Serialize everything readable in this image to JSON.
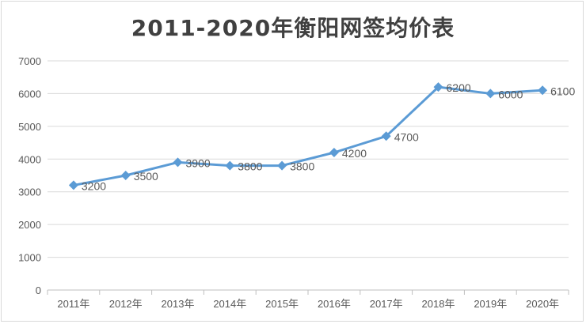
{
  "chart_data": {
    "type": "line",
    "title": "2011-2020年衡阳网签均价表",
    "categories": [
      "2011年",
      "2012年",
      "2013年",
      "2014年",
      "2015年",
      "2016年",
      "2017年",
      "2018年",
      "2019年",
      "2020年"
    ],
    "series": [
      {
        "values": [
          3200,
          3500,
          3900,
          3800,
          3800,
          4200,
          4700,
          6200,
          6000,
          6100
        ],
        "color": "#5b9bd5"
      }
    ],
    "data_labels": [
      "3200",
      "3500",
      "3900",
      "3800",
      "3800",
      "4200",
      "4700",
      "6200",
      "6000",
      "6100"
    ],
    "y_ticks": [
      "0",
      "1000",
      "2000",
      "3000",
      "4000",
      "5000",
      "6000",
      "7000"
    ],
    "ylim": [
      0,
      7000
    ],
    "grid": true,
    "legend": "none",
    "xlabel": "",
    "ylabel": ""
  }
}
